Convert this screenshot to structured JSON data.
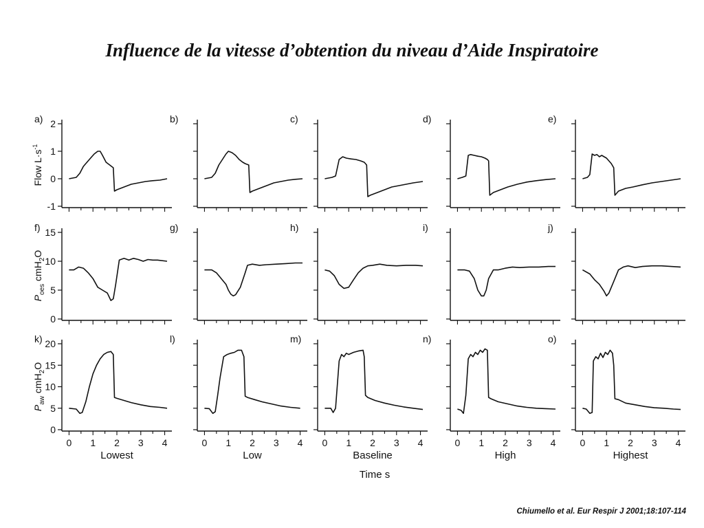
{
  "slide": {
    "title": "Influence de la vitesse d’obtention du niveau d’Aide Inspiratoire",
    "citation": "Chiumello et al. Eur Respir J 2001;18:107-114"
  },
  "chart_data": {
    "type": "line",
    "columns": [
      "Lowest",
      "Low",
      "Baseline",
      "High",
      "Highest"
    ],
    "xlabel": "Time s",
    "xticks": [
      0,
      1,
      2,
      3,
      4
    ],
    "xlim": [
      -0.3,
      4.3
    ],
    "rows": [
      {
        "ylabel_main": "Flow",
        "ylabel_unit": "L·s",
        "ylabel_sup": "-1",
        "ylim": [
          -1,
          2
        ],
        "yticks": [
          -1,
          0,
          1,
          2
        ],
        "panels": [
          {
            "label": "a)",
            "x": [
              0,
              0.3,
              0.45,
              0.6,
              0.75,
              0.9,
              1.05,
              1.2,
              1.3,
              1.4,
              1.55,
              1.7,
              1.85,
              1.9,
              2.0,
              2.3,
              2.6,
              2.9,
              3.2,
              3.5,
              3.8,
              4.1
            ],
            "y": [
              0,
              0.05,
              0.2,
              0.45,
              0.6,
              0.75,
              0.9,
              1.0,
              1.0,
              0.85,
              0.6,
              0.5,
              0.4,
              -0.45,
              -0.4,
              -0.3,
              -0.2,
              -0.15,
              -0.1,
              -0.07,
              -0.05,
              0.0
            ]
          },
          {
            "label": "b)",
            "x": [
              0,
              0.3,
              0.45,
              0.6,
              0.75,
              0.9,
              1.0,
              1.15,
              1.3,
              1.45,
              1.6,
              1.7,
              1.85,
              1.9,
              2.0,
              2.3,
              2.6,
              2.9,
              3.2,
              3.5,
              3.8,
              4.1
            ],
            "y": [
              0,
              0.05,
              0.2,
              0.5,
              0.7,
              0.9,
              1.0,
              0.95,
              0.85,
              0.7,
              0.6,
              0.55,
              0.5,
              -0.5,
              -0.45,
              -0.35,
              -0.25,
              -0.15,
              -0.1,
              -0.05,
              -0.02,
              0.0
            ]
          },
          {
            "label": "c)",
            "x": [
              0,
              0.3,
              0.45,
              0.6,
              0.75,
              0.9,
              1.1,
              1.3,
              1.5,
              1.65,
              1.75,
              1.8,
              1.9,
              2.2,
              2.5,
              2.8,
              3.1,
              3.4,
              3.7,
              4.1
            ],
            "y": [
              0,
              0.05,
              0.1,
              0.7,
              0.8,
              0.75,
              0.72,
              0.7,
              0.65,
              0.6,
              0.5,
              -0.65,
              -0.6,
              -0.5,
              -0.4,
              -0.3,
              -0.25,
              -0.2,
              -0.15,
              -0.1
            ]
          },
          {
            "label": "d)",
            "x": [
              0,
              0.2,
              0.35,
              0.45,
              0.55,
              0.7,
              0.85,
              1.0,
              1.15,
              1.25,
              1.3,
              1.35,
              1.5,
              1.8,
              2.1,
              2.5,
              2.9,
              3.3,
              3.7,
              4.1
            ],
            "y": [
              0,
              0.05,
              0.1,
              0.85,
              0.88,
              0.85,
              0.82,
              0.8,
              0.75,
              0.7,
              0.65,
              -0.6,
              -0.5,
              -0.4,
              -0.3,
              -0.2,
              -0.12,
              -0.07,
              -0.03,
              0.0
            ]
          },
          {
            "label": "e)",
            "x": [
              0,
              0.2,
              0.3,
              0.4,
              0.5,
              0.6,
              0.7,
              0.8,
              0.9,
              1.0,
              1.1,
              1.2,
              1.3,
              1.35,
              1.5,
              1.8,
              2.1,
              2.5,
              2.9,
              3.3,
              3.7,
              4.1
            ],
            "y": [
              0,
              0.05,
              0.15,
              0.9,
              0.85,
              0.88,
              0.8,
              0.85,
              0.8,
              0.75,
              0.65,
              0.55,
              0.4,
              -0.6,
              -0.45,
              -0.35,
              -0.3,
              -0.22,
              -0.15,
              -0.1,
              -0.05,
              0.0
            ]
          }
        ]
      },
      {
        "ylabel_main": "P",
        "ylabel_sub": "oes",
        "ylabel_unit": "cmH",
        "ylabel_sub2": "2",
        "ylabel_end": "O",
        "ylim": [
          0,
          15
        ],
        "yticks": [
          0,
          5,
          10,
          15
        ],
        "panels": [
          {
            "label": "f)",
            "x": [
              0,
              0.2,
              0.4,
              0.6,
              0.8,
              1.0,
              1.2,
              1.4,
              1.6,
              1.75,
              1.85,
              1.95,
              2.1,
              2.3,
              2.5,
              2.7,
              2.9,
              3.1,
              3.3,
              3.5,
              3.7,
              4.1
            ],
            "y": [
              8.5,
              8.5,
              9.0,
              8.8,
              8.0,
              7.0,
              5.5,
              5.0,
              4.5,
              3.2,
              3.5,
              6.0,
              10.2,
              10.5,
              10.2,
              10.5,
              10.3,
              10.0,
              10.3,
              10.2,
              10.2,
              10.0
            ]
          },
          {
            "label": "g)",
            "x": [
              0,
              0.3,
              0.5,
              0.7,
              0.9,
              1.0,
              1.1,
              1.2,
              1.3,
              1.5,
              1.7,
              1.8,
              2.0,
              2.3,
              2.6,
              3.0,
              3.4,
              3.8,
              4.1
            ],
            "y": [
              8.5,
              8.5,
              8.0,
              7.0,
              6.0,
              5.0,
              4.3,
              4.0,
              4.2,
              5.5,
              8.0,
              9.3,
              9.5,
              9.3,
              9.4,
              9.5,
              9.6,
              9.7,
              9.7
            ]
          },
          {
            "label": "h)",
            "x": [
              0,
              0.2,
              0.4,
              0.6,
              0.8,
              1.0,
              1.2,
              1.4,
              1.6,
              1.8,
              2.0,
              2.3,
              2.6,
              3.0,
              3.4,
              3.8,
              4.1
            ],
            "y": [
              8.5,
              8.3,
              7.5,
              6.0,
              5.3,
              5.5,
              6.8,
              8.0,
              8.8,
              9.2,
              9.3,
              9.5,
              9.3,
              9.2,
              9.3,
              9.3,
              9.2
            ]
          },
          {
            "label": "i)",
            "x": [
              0,
              0.3,
              0.5,
              0.7,
              0.85,
              1.0,
              1.1,
              1.2,
              1.3,
              1.5,
              1.7,
              2.0,
              2.3,
              2.6,
              3.0,
              3.4,
              3.8,
              4.1
            ],
            "y": [
              8.5,
              8.5,
              8.3,
              7.0,
              5.0,
              4.0,
              4.0,
              5.0,
              7.0,
              8.5,
              8.5,
              8.8,
              9.0,
              8.9,
              9.0,
              9.0,
              9.1,
              9.1
            ]
          },
          {
            "label": "j)",
            "x": [
              0,
              0.3,
              0.5,
              0.7,
              0.9,
              1.0,
              1.1,
              1.3,
              1.5,
              1.7,
              1.9,
              2.2,
              2.5,
              2.9,
              3.3,
              3.7,
              4.1
            ],
            "y": [
              8.5,
              7.8,
              6.8,
              6.0,
              4.8,
              4.0,
              4.5,
              6.5,
              8.5,
              9.0,
              9.2,
              8.9,
              9.1,
              9.2,
              9.2,
              9.1,
              9.0
            ]
          }
        ]
      },
      {
        "ylabel_main": "P",
        "ylabel_sub": "aw",
        "ylabel_unit": "cmH",
        "ylabel_sub2": "2",
        "ylabel_end": "O",
        "ylim": [
          0,
          20
        ],
        "yticks": [
          0,
          5,
          10,
          15,
          20
        ],
        "panels": [
          {
            "label": "k)",
            "x": [
              0,
              0.3,
              0.45,
              0.55,
              0.7,
              0.85,
              1.0,
              1.15,
              1.3,
              1.45,
              1.6,
              1.75,
              1.85,
              1.9,
              2.0,
              2.3,
              2.6,
              3.0,
              3.4,
              3.8,
              4.1
            ],
            "y": [
              5.0,
              4.8,
              3.8,
              4.0,
              6.5,
              10.0,
              13.0,
              15.0,
              16.5,
              17.5,
              18.0,
              18.2,
              17.5,
              7.5,
              7.3,
              6.8,
              6.3,
              5.8,
              5.4,
              5.2,
              5.0
            ]
          },
          {
            "label": "l)",
            "x": [
              0,
              0.2,
              0.35,
              0.45,
              0.55,
              0.65,
              0.8,
              0.95,
              1.1,
              1.25,
              1.4,
              1.55,
              1.65,
              1.7,
              1.8,
              2.1,
              2.4,
              2.8,
              3.2,
              3.6,
              4.0
            ],
            "y": [
              5.0,
              4.9,
              3.8,
              4.2,
              8.0,
              12.0,
              17.0,
              17.5,
              17.8,
              18.0,
              18.5,
              18.5,
              17.0,
              7.8,
              7.5,
              7.0,
              6.5,
              6.0,
              5.5,
              5.2,
              5.0
            ]
          },
          {
            "label": "m)",
            "x": [
              0,
              0.25,
              0.35,
              0.45,
              0.6,
              0.7,
              0.8,
              0.9,
              1.0,
              1.2,
              1.4,
              1.6,
              1.65,
              1.7,
              1.8,
              2.1,
              2.5,
              2.9,
              3.3,
              3.7,
              4.1
            ],
            "y": [
              5.0,
              5.0,
              4.0,
              5.0,
              16.0,
              17.5,
              17.0,
              17.8,
              17.5,
              18.0,
              18.3,
              18.5,
              17.0,
              8.0,
              7.5,
              6.8,
              6.2,
              5.7,
              5.3,
              5.0,
              4.7
            ]
          },
          {
            "label": "n)",
            "x": [
              0,
              0.15,
              0.25,
              0.35,
              0.45,
              0.55,
              0.65,
              0.75,
              0.85,
              0.95,
              1.05,
              1.15,
              1.25,
              1.3,
              1.4,
              1.7,
              2.1,
              2.5,
              2.9,
              3.3,
              3.7,
              4.1
            ],
            "y": [
              4.8,
              4.5,
              3.8,
              8.0,
              16.5,
              17.5,
              17.0,
              18.0,
              17.5,
              18.5,
              18.0,
              18.8,
              18.5,
              7.5,
              7.2,
              6.5,
              6.0,
              5.5,
              5.2,
              5.0,
              4.9,
              4.8
            ]
          },
          {
            "label": "o)",
            "x": [
              0,
              0.15,
              0.3,
              0.4,
              0.45,
              0.55,
              0.65,
              0.75,
              0.85,
              0.95,
              1.05,
              1.15,
              1.25,
              1.3,
              1.35,
              1.5,
              1.8,
              2.2,
              2.6,
              3.0,
              3.4,
              3.8,
              4.1
            ],
            "y": [
              5.0,
              4.8,
              3.8,
              4.0,
              16.0,
              17.0,
              16.5,
              17.8,
              16.8,
              18.0,
              17.5,
              18.5,
              17.8,
              15.0,
              7.2,
              7.0,
              6.2,
              5.8,
              5.4,
              5.1,
              5.0,
              4.8,
              4.7
            ]
          }
        ]
      }
    ]
  }
}
